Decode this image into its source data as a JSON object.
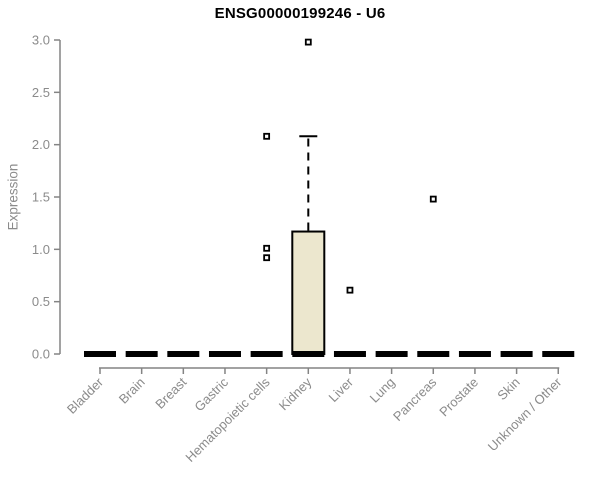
{
  "title": "ENSG00000199246 - U6",
  "chart_data": {
    "type": "boxplot",
    "title": "ENSG00000199246 - U6",
    "xlabel": "",
    "ylabel": "Expression",
    "ylim": [
      0.0,
      3.0
    ],
    "ytick_labels": [
      "0.0",
      "0.5",
      "1.0",
      "1.5",
      "2.0",
      "2.5",
      "3.0"
    ],
    "ytick_values": [
      0.0,
      0.5,
      1.0,
      1.5,
      2.0,
      2.5,
      3.0
    ],
    "grid": false,
    "legend": "none",
    "categories": [
      "Bladder",
      "Brain",
      "Breast",
      "Gastric",
      "Hematopoietic cells",
      "Kidney",
      "Liver",
      "Lung",
      "Pancreas",
      "Prostate",
      "Skin",
      "Unknown / Other"
    ],
    "boxes": [
      {
        "category": "Bladder",
        "whisker_low": 0.0,
        "q1": 0.0,
        "median": 0.0,
        "q3": 0.0,
        "whisker_high": 0.0,
        "outliers": []
      },
      {
        "category": "Brain",
        "whisker_low": 0.0,
        "q1": 0.0,
        "median": 0.0,
        "q3": 0.0,
        "whisker_high": 0.0,
        "outliers": []
      },
      {
        "category": "Breast",
        "whisker_low": 0.0,
        "q1": 0.0,
        "median": 0.0,
        "q3": 0.0,
        "whisker_high": 0.0,
        "outliers": []
      },
      {
        "category": "Gastric",
        "whisker_low": 0.0,
        "q1": 0.0,
        "median": 0.0,
        "q3": 0.0,
        "whisker_high": 0.0,
        "outliers": []
      },
      {
        "category": "Hematopoietic cells",
        "whisker_low": 0.0,
        "q1": 0.0,
        "median": 0.0,
        "q3": 0.0,
        "whisker_high": 0.0,
        "outliers": [
          2.08,
          1.01,
          0.92
        ]
      },
      {
        "category": "Kidney",
        "whisker_low": 0.0,
        "q1": 0.0,
        "median": 0.0,
        "q3": 1.17,
        "whisker_high": 2.08,
        "outliers": [
          2.98
        ]
      },
      {
        "category": "Liver",
        "whisker_low": 0.0,
        "q1": 0.0,
        "median": 0.0,
        "q3": 0.0,
        "whisker_high": 0.0,
        "outliers": [
          0.61
        ]
      },
      {
        "category": "Lung",
        "whisker_low": 0.0,
        "q1": 0.0,
        "median": 0.0,
        "q3": 0.0,
        "whisker_high": 0.0,
        "outliers": []
      },
      {
        "category": "Pancreas",
        "whisker_low": 0.0,
        "q1": 0.0,
        "median": 0.0,
        "q3": 0.0,
        "whisker_high": 0.0,
        "outliers": [
          1.48
        ]
      },
      {
        "category": "Prostate",
        "whisker_low": 0.0,
        "q1": 0.0,
        "median": 0.0,
        "q3": 0.0,
        "whisker_high": 0.0,
        "outliers": []
      },
      {
        "category": "Skin",
        "whisker_low": 0.0,
        "q1": 0.0,
        "median": 0.0,
        "q3": 0.0,
        "whisker_high": 0.0,
        "outliers": []
      },
      {
        "category": "Unknown / Other",
        "whisker_low": 0.0,
        "q1": 0.0,
        "median": 0.0,
        "q3": 0.0,
        "whisker_high": 0.0,
        "outliers": []
      }
    ],
    "colors": {
      "box_fill": "#ECE7CE",
      "box_border": "#000000",
      "median": "#000000",
      "whisker": "#000000",
      "outlier": "#000000",
      "axis_line": "#848484",
      "tick_label": "#8B8B8B",
      "title": "#000000",
      "background": "#FFFFFF"
    }
  }
}
